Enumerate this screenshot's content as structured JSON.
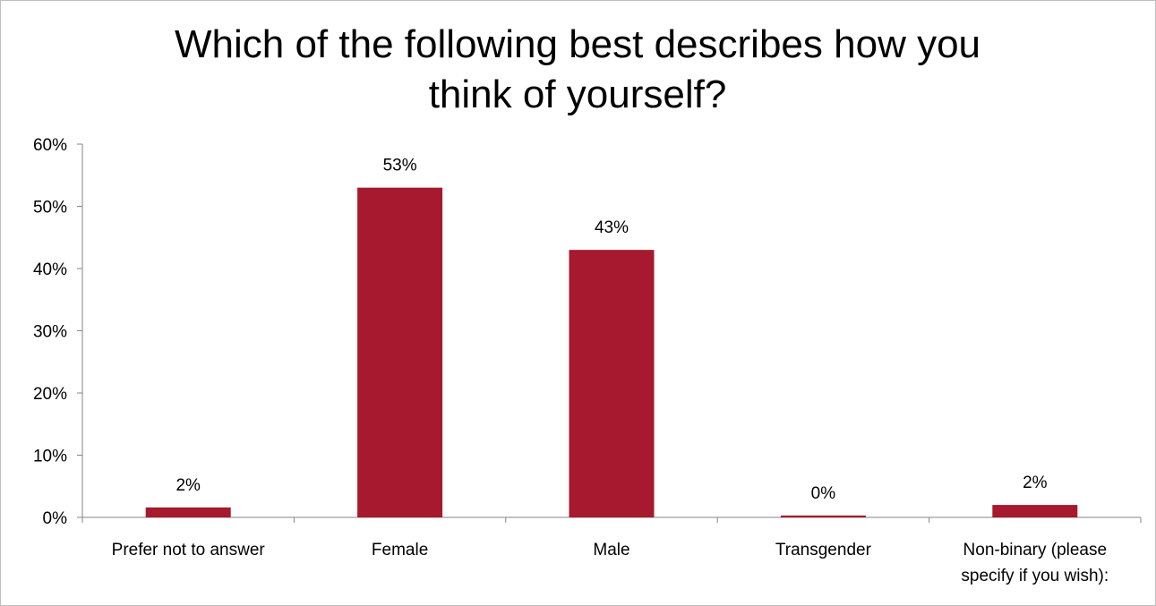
{
  "chart_data": {
    "type": "bar",
    "title_lines": [
      "Which of the following best describes how you",
      "think of yourself?"
    ],
    "categories": [
      [
        "Prefer not to answer"
      ],
      [
        "Female"
      ],
      [
        "Male"
      ],
      [
        "Transgender"
      ],
      [
        "Non-binary (please",
        "specify if you wish):"
      ]
    ],
    "values": [
      1.6,
      53,
      43,
      0.3,
      2
    ],
    "data_labels": [
      "2%",
      "53%",
      "43%",
      "0%",
      "2%"
    ],
    "ylim": [
      0,
      60
    ],
    "yticks": [
      0,
      10,
      20,
      30,
      40,
      50,
      60
    ],
    "ytick_labels": [
      "0%",
      "10%",
      "20%",
      "30%",
      "40%",
      "50%",
      "60%"
    ],
    "xlabel": "",
    "ylabel": "",
    "grid": false,
    "legend": "none",
    "bar_color": "#a6192e"
  }
}
